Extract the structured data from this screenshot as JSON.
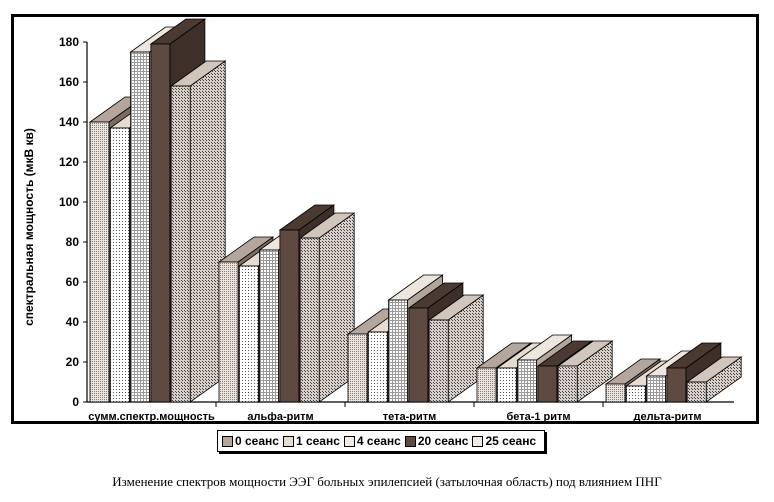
{
  "chart_data": {
    "type": "bar",
    "ylabel": "спектральная мощность (мкВ кв)",
    "ylim": [
      0,
      180
    ],
    "yticks": [
      0,
      20,
      40,
      60,
      80,
      100,
      120,
      140,
      160,
      180
    ],
    "categories": [
      "сумм.спектр.мощность",
      "альфа-ритм",
      "тета-ритм",
      "бета-1 ритм",
      "дельта-ритм"
    ],
    "series": [
      {
        "name": "0 сеанс",
        "color": "#b4a69c",
        "values": [
          140,
          70,
          34,
          17,
          9
        ]
      },
      {
        "name": "1 сеанс",
        "color": "#e6dcd2",
        "values": [
          137,
          68,
          35,
          17,
          8
        ]
      },
      {
        "name": "4 сеанс",
        "color": "#f2ece6",
        "values": [
          175,
          76,
          51,
          21,
          13
        ]
      },
      {
        "name": "20 сеанс",
        "color": "#5e4a40",
        "values": [
          179,
          86,
          47,
          18,
          17
        ]
      },
      {
        "name": "25 сеанс",
        "color": "#f0ebe6",
        "values": [
          158,
          82,
          41,
          18,
          10
        ]
      }
    ],
    "grid": false,
    "legend": "bottom",
    "caption": "Изменение спектров мощности ЭЭГ больных эпилепсией (затылочная область) под влиянием ПНГ"
  }
}
